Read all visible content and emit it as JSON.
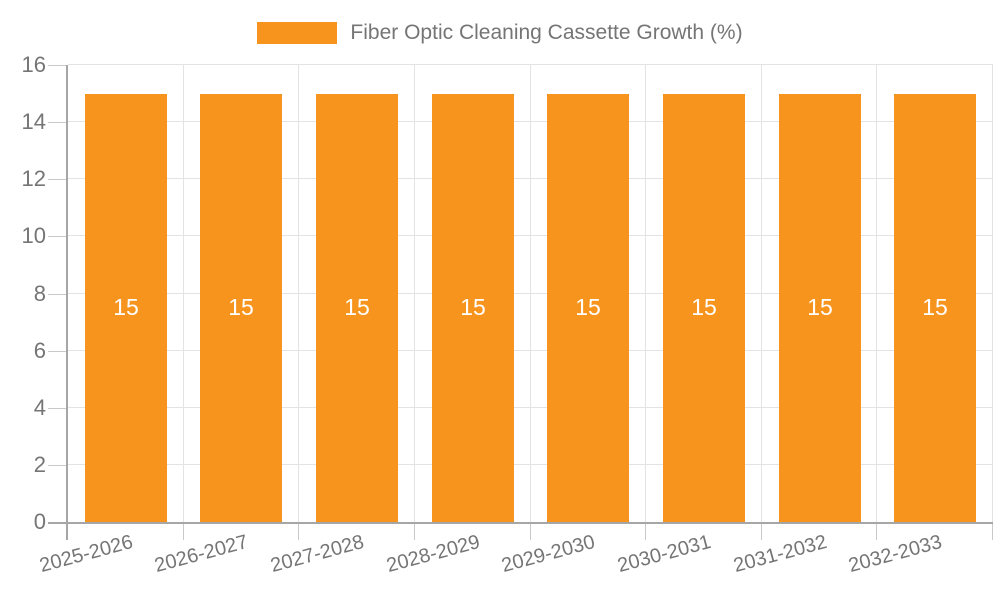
{
  "chart_data": {
    "type": "bar",
    "title": "Fiber Optic Cleaning Cassette Growth (%)",
    "categories": [
      "2025-2026",
      "2026-2027",
      "2027-2028",
      "2028-2029",
      "2029-2030",
      "2030-2031",
      "2031-2032",
      "2032-2033"
    ],
    "series": [
      {
        "name": "Fiber Optic Cleaning Cassette Growth (%)",
        "values": [
          15,
          15,
          15,
          15,
          15,
          15,
          15,
          15
        ]
      }
    ],
    "bar_value_labels": [
      "15",
      "15",
      "15",
      "15",
      "15",
      "15",
      "15",
      "15"
    ],
    "xlabel": "",
    "ylabel": "",
    "ylim": [
      0,
      16
    ],
    "ytick_step": 2,
    "yticks": [
      0,
      2,
      4,
      6,
      8,
      10,
      12,
      14,
      16
    ],
    "grid": true,
    "legend_position": "top",
    "x_label_rotation_deg": -15,
    "colors": {
      "bar": "#F7941E",
      "bar_value_label": "#FFFFFF",
      "axis_line": "#A6A6A6",
      "tick_mark": "#C9C9C9",
      "gridline": "#E3E3E3",
      "tick_text": "#757575",
      "legend_text": "#757575",
      "background": "#FFFFFF"
    }
  }
}
